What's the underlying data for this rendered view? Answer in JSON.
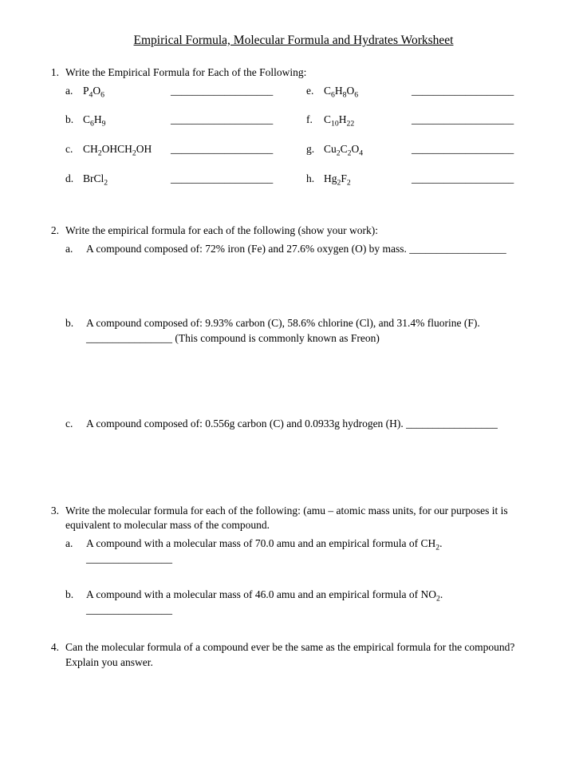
{
  "title": "Empirical Formula, Molecular Formula and Hydrates Worksheet",
  "q1": {
    "num": "1.",
    "prompt": "Write the Empirical Formula for Each of the Following:",
    "left": [
      {
        "l": "a.",
        "f": "P<sub>4</sub>O<sub>6</sub>"
      },
      {
        "l": "b.",
        "f": "C<sub>6</sub>H<sub>9</sub>"
      },
      {
        "l": "c.",
        "f": "CH<sub>2</sub>OHCH<sub>2</sub>OH"
      },
      {
        "l": "d.",
        "f": "BrCl<sub>2</sub>"
      }
    ],
    "right": [
      {
        "l": "e.",
        "f": "C<sub>6</sub>H<sub>8</sub>O<sub>6</sub>"
      },
      {
        "l": "f.",
        "f": "C<sub>10</sub>H<sub>22</sub>"
      },
      {
        "l": "g.",
        "f": "Cu<sub>2</sub>C<sub>2</sub>O<sub>4</sub>"
      },
      {
        "l": "h.",
        "f": "Hg<sub>2</sub>F<sub>2</sub>"
      }
    ],
    "blank": "___________________"
  },
  "q2": {
    "num": "2.",
    "prompt": "Write the empirical formula for each of the following (show your work):",
    "a": {
      "l": "a.",
      "t": "A compound composed of: 72% iron (Fe) and 27.6% oxygen (O) by mass. __________________"
    },
    "b": {
      "l": "b.",
      "t1": "A compound composed of: 9.93% carbon (C), 58.6% chlorine (Cl), and 31.4% fluorine (F).",
      "t2": "________________ (This compound is commonly known as Freon)"
    },
    "c": {
      "l": "c.",
      "t": "A compound composed of: 0.556g carbon (C) and 0.0933g hydrogen (H). _________________"
    }
  },
  "q3": {
    "num": "3.",
    "prompt": "Write the molecular formula for each of the following: (amu – atomic mass units, for our purposes it is equivalent to molecular mass of the compound.",
    "a": {
      "l": "a.",
      "t": "A compound with a molecular mass of 70.0 amu and an empirical formula of CH<sub>2</sub>.",
      "b": "________________"
    },
    "b": {
      "l": "b.",
      "t": "A compound with a molecular mass of 46.0 amu and an empirical formula of NO<sub>2</sub>.",
      "b": "________________"
    }
  },
  "q4": {
    "num": "4.",
    "t": "Can the molecular formula of a compound ever be the same as the empirical formula for the compound? Explain you answer."
  }
}
